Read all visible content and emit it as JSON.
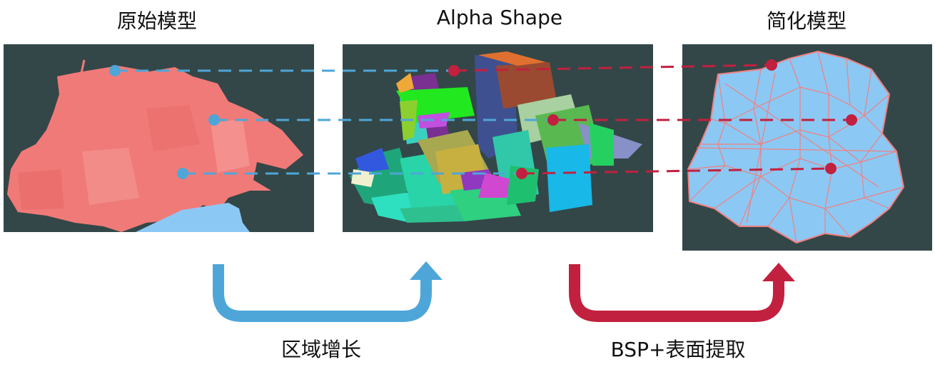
{
  "titles": {
    "original_model": "原始模型",
    "alpha_shape": "Alpha Shape",
    "simplified_model": "简化模型"
  },
  "steps": {
    "region_growing": "区域增长",
    "bsp_surface_extraction": "BSP+表面提取"
  },
  "colors": {
    "panel_bg": "#334748",
    "point_cloud": "#f07a78",
    "blue_link": "#4ea6d8",
    "red_link": "#c2203f",
    "simplified_fill": "#8cc8f4",
    "simplified_edge": "#f08080"
  }
}
